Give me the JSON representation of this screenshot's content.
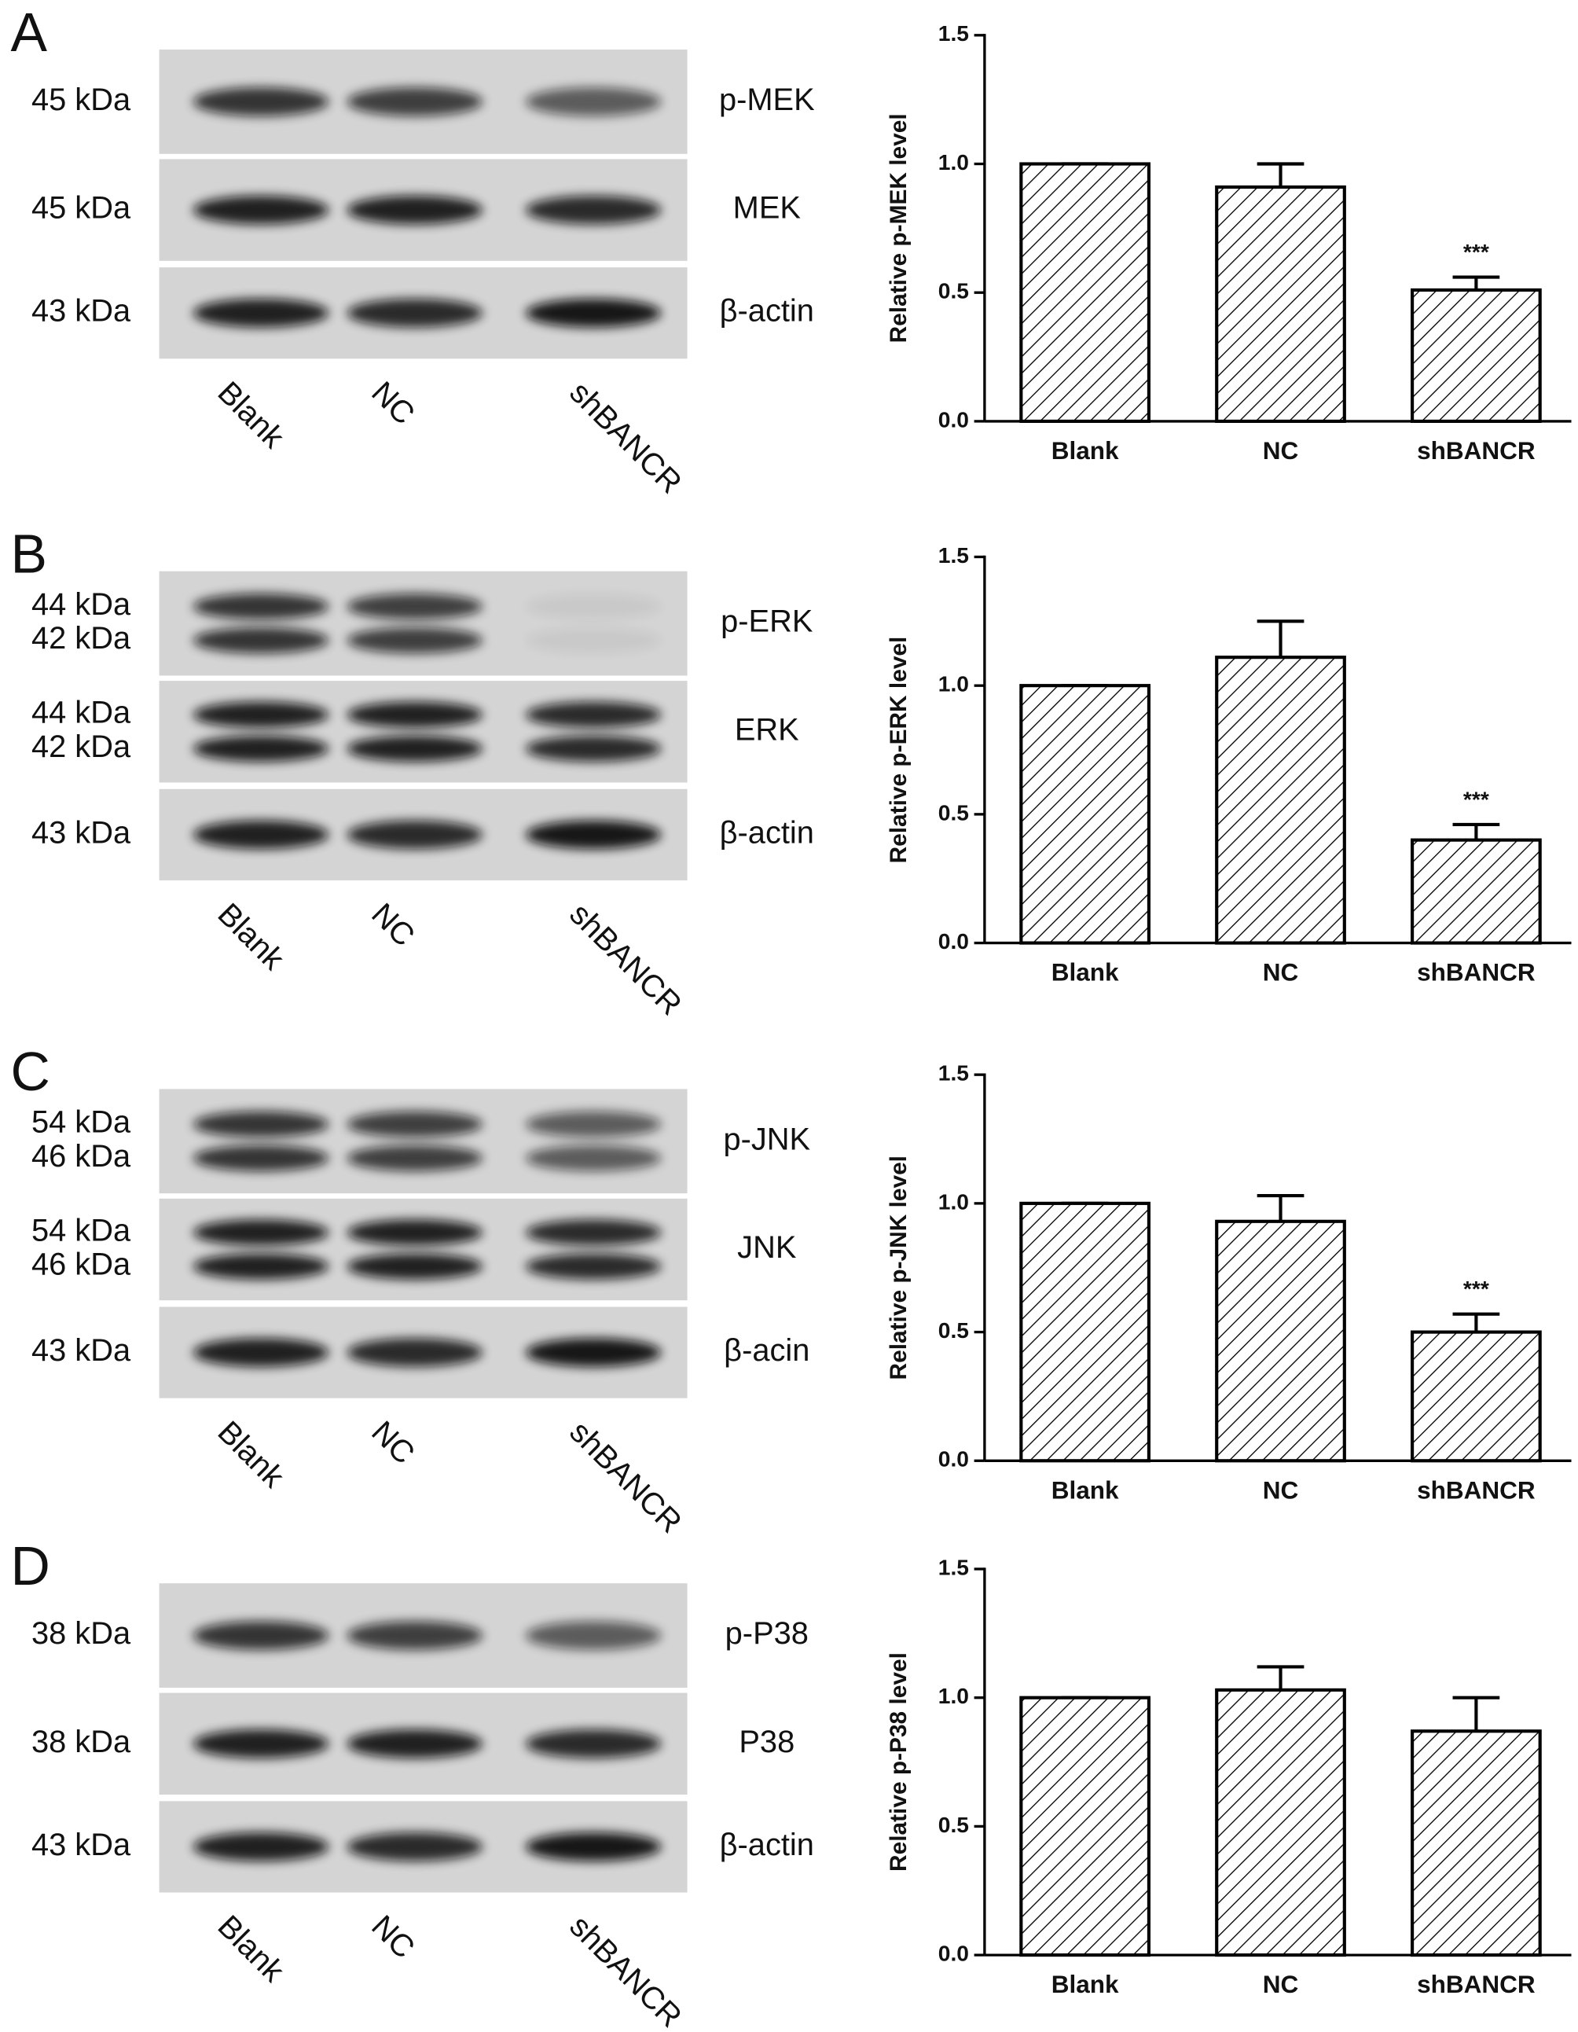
{
  "panels": [
    {
      "label": "A",
      "blot": {
        "rows": [
          {
            "kda": [
              "45 kDa"
            ],
            "protein": "p-MEK"
          },
          {
            "kda": [
              "45 kDa"
            ],
            "protein": "MEK"
          },
          {
            "kda": [
              "43 kDa"
            ],
            "protein": "β-actin"
          }
        ],
        "lanes": [
          "Blank",
          "NC",
          "shBANCR"
        ]
      }
    },
    {
      "label": "B",
      "blot": {
        "rows": [
          {
            "kda": [
              "44 kDa",
              "42 kDa"
            ],
            "protein": "p-ERK"
          },
          {
            "kda": [
              "44 kDa",
              "42 kDa"
            ],
            "protein": "ERK"
          },
          {
            "kda": [
              "43 kDa"
            ],
            "protein": "β-actin"
          }
        ],
        "lanes": [
          "Blank",
          "NC",
          "shBANCR"
        ]
      }
    },
    {
      "label": "C",
      "blot": {
        "rows": [
          {
            "kda": [
              "54 kDa",
              "46 kDa"
            ],
            "protein": "p-JNK"
          },
          {
            "kda": [
              "54 kDa",
              "46 kDa"
            ],
            "protein": "JNK"
          },
          {
            "kda": [
              "43 kDa"
            ],
            "protein": "β-acin"
          }
        ],
        "lanes": [
          "Blank",
          "NC",
          "shBANCR"
        ]
      }
    },
    {
      "label": "D",
      "blot": {
        "rows": [
          {
            "kda": [
              "38 kDa"
            ],
            "protein": "p-P38"
          },
          {
            "kda": [
              "38 kDa"
            ],
            "protein": "P38"
          },
          {
            "kda": [
              "43 kDa"
            ],
            "protein": "β-actin"
          }
        ],
        "lanes": [
          "Blank",
          "NC",
          "shBANCR"
        ]
      }
    }
  ],
  "chart_data": [
    {
      "type": "bar",
      "ylabel": "Relative p-MEK level",
      "categories": [
        "Blank",
        "NC",
        "shBANCR"
      ],
      "values": [
        1.0,
        0.91,
        0.51
      ],
      "errors": [
        0,
        0.09,
        0.05
      ],
      "annotations": [
        {
          "text": "***",
          "category": "shBANCR"
        }
      ],
      "ylim": [
        0,
        1.5
      ],
      "yticks": [
        {
          "value": 0,
          "label": "0.0"
        },
        {
          "value": 0.5,
          "label": "0.5"
        },
        {
          "value": 1,
          "label": "1.0"
        },
        {
          "value": 1.5,
          "label": "1.5"
        }
      ],
      "color": "#ffffff",
      "hatch_color": "#000000"
    },
    {
      "type": "bar",
      "ylabel": "Relative p-ERK level",
      "categories": [
        "Blank",
        "NC",
        "shBANCR"
      ],
      "values": [
        1.0,
        1.11,
        0.4
      ],
      "errors": [
        0,
        0.14,
        0.06
      ],
      "annotations": [
        {
          "text": "***",
          "category": "shBANCR"
        }
      ],
      "ylim": [
        0,
        1.5
      ],
      "yticks": [
        {
          "value": 0,
          "label": "0.0"
        },
        {
          "value": 0.5,
          "label": "0.5"
        },
        {
          "value": 1,
          "label": "1.0"
        },
        {
          "value": 1.5,
          "label": "1.5"
        }
      ],
      "color": "#ffffff",
      "hatch_color": "#000000"
    },
    {
      "type": "bar",
      "ylabel": "Relative p-JNK level",
      "categories": [
        "Blank",
        "NC",
        "shBANCR"
      ],
      "values": [
        1.0,
        0.93,
        0.5
      ],
      "errors": [
        0,
        0.1,
        0.07
      ],
      "annotations": [
        {
          "text": "***",
          "category": "shBANCR"
        }
      ],
      "ylim": [
        0,
        1.5
      ],
      "yticks": [
        {
          "value": 0,
          "label": "0.0"
        },
        {
          "value": 0.5,
          "label": "0.5"
        },
        {
          "value": 1,
          "label": "1.0"
        },
        {
          "value": 1.5,
          "label": "1.5"
        }
      ],
      "color": "#ffffff",
      "hatch_color": "#000000"
    },
    {
      "type": "bar",
      "ylabel": "Relative p-P38 level",
      "categories": [
        "Blank",
        "NC",
        "shBANCR"
      ],
      "values": [
        1.0,
        1.03,
        0.87
      ],
      "errors": [
        0,
        0.09,
        0.13
      ],
      "ylim": [
        0,
        1.5
      ],
      "yticks": [
        {
          "value": 0,
          "label": "0.0"
        },
        {
          "value": 0.5,
          "label": "0.5"
        },
        {
          "value": 1,
          "label": "1.0"
        },
        {
          "value": 1.5,
          "label": "1.5"
        }
      ],
      "color": "#ffffff",
      "hatch_color": "#000000"
    }
  ]
}
